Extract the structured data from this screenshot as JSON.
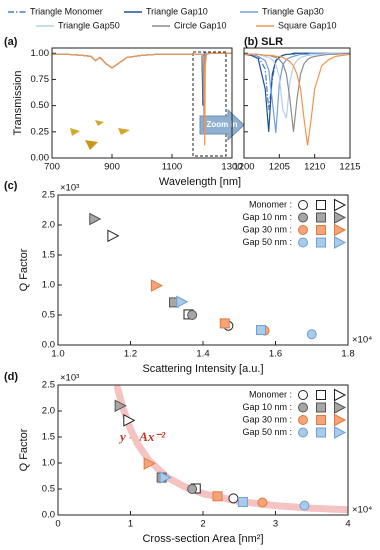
{
  "chart_data": [
    {
      "type": "line",
      "panel_label": "(a)",
      "zoom_label": "Zoom in",
      "xlabel": "Wavelength [nm]",
      "ylabel": "Transmission",
      "xlim": [
        700,
        1300
      ],
      "xticks": [
        700,
        900,
        1100,
        1300
      ],
      "ylim": [
        0,
        1.05
      ],
      "yticks": [
        {
          "value": 0,
          "label": "0.00"
        },
        {
          "value": 0.25,
          "label": "0.25"
        },
        {
          "value": 0.5,
          "label": "0.50"
        },
        {
          "value": 0.75,
          "label": "0.75"
        },
        {
          "value": 1,
          "label": "1.00"
        }
      ],
      "x": [
        700,
        750,
        800,
        830,
        845,
        860,
        880,
        900,
        920,
        950,
        1000,
        1050,
        1100,
        1150,
        1190,
        1200,
        1203,
        1205,
        1207,
        1209,
        1211,
        1215,
        1230,
        1260,
        1300
      ],
      "series": [
        {
          "name": "Triangle Monomer",
          "color": "#4a7fc1",
          "style": "dash-dot",
          "values": [
            0.99,
            0.99,
            0.98,
            0.97,
            0.93,
            0.96,
            0.9,
            0.86,
            0.9,
            0.96,
            0.98,
            0.99,
            0.99,
            0.99,
            0.99,
            0.99,
            0.6,
            0.95,
            0.99,
            1,
            1,
            1,
            1,
            1,
            1
          ]
        },
        {
          "name": "Triangle Gap10",
          "color": "#1f4e99",
          "style": "solid",
          "values": [
            0.99,
            0.99,
            0.98,
            0.97,
            0.93,
            0.96,
            0.9,
            0.86,
            0.9,
            0.96,
            0.98,
            0.99,
            0.99,
            0.99,
            0.99,
            0.99,
            0.5,
            0.96,
            0.99,
            1,
            1,
            1,
            1,
            1,
            1
          ]
        },
        {
          "name": "Triangle Gap30",
          "color": "#6f9fd8",
          "style": "solid",
          "values": [
            0.99,
            0.99,
            0.98,
            0.97,
            0.93,
            0.96,
            0.9,
            0.86,
            0.9,
            0.96,
            0.98,
            0.99,
            0.99,
            0.99,
            0.99,
            0.99,
            0.93,
            0.55,
            0.97,
            0.99,
            1,
            1,
            1,
            1,
            1
          ]
        },
        {
          "name": "Triangle Gap50",
          "color": "#b8cdea",
          "style": "solid",
          "values": [
            0.99,
            0.99,
            0.98,
            0.97,
            0.93,
            0.96,
            0.9,
            0.86,
            0.9,
            0.96,
            0.98,
            0.99,
            0.99,
            0.99,
            0.99,
            0.99,
            0.97,
            0.77,
            0.7,
            0.95,
            0.98,
            1,
            1,
            1,
            1
          ]
        },
        {
          "name": "Circle Gap10",
          "color": "#8c8c8c",
          "style": "solid",
          "values": [
            0.99,
            0.99,
            0.98,
            0.97,
            0.93,
            0.96,
            0.9,
            0.86,
            0.9,
            0.96,
            0.98,
            0.99,
            0.99,
            0.99,
            0.99,
            0.99,
            0.98,
            0.94,
            0.25,
            0.94,
            0.98,
            0.99,
            1,
            1,
            1
          ]
        },
        {
          "name": "Square Gap10",
          "color": "#f0954f",
          "style": "solid",
          "values": [
            0.99,
            0.99,
            0.98,
            0.97,
            0.93,
            0.96,
            0.9,
            0.86,
            0.9,
            0.96,
            0.98,
            0.99,
            0.99,
            0.99,
            0.99,
            0.99,
            0.98,
            0.97,
            0.88,
            0.12,
            0.88,
            0.99,
            1,
            1,
            1
          ]
        }
      ]
    },
    {
      "type": "line",
      "panel_label": "(b) SLR",
      "xlim": [
        1200,
        1215
      ],
      "xticks": [
        1200,
        1205,
        1210,
        1215
      ],
      "ylim": [
        0,
        1.05
      ],
      "yticks": [
        0,
        0.25,
        0.5,
        0.75,
        1
      ],
      "ytick_labels": false,
      "x": [
        1200,
        1201,
        1202,
        1203,
        1203.5,
        1204,
        1204.5,
        1205,
        1205.5,
        1206,
        1206.5,
        1207,
        1207.5,
        1208,
        1208.5,
        1209,
        1209.5,
        1210,
        1211,
        1212,
        1213,
        1215
      ],
      "series": [
        {
          "color": "#4a7fc1",
          "style": "dash-dot",
          "values": [
            0.99,
            0.99,
            0.97,
            0.85,
            0.46,
            0.75,
            0.92,
            0.97,
            0.98,
            0.99,
            0.99,
            0.99,
            1,
            1,
            1,
            1,
            1,
            1,
            1,
            1,
            1,
            1
          ]
        },
        {
          "color": "#1f4e99",
          "style": "solid",
          "values": [
            0.99,
            0.98,
            0.95,
            0.66,
            0.25,
            0.8,
            0.93,
            0.96,
            0.98,
            0.99,
            0.99,
            1,
            1,
            1,
            1,
            1,
            1,
            1,
            1,
            1,
            1,
            1
          ]
        },
        {
          "color": "#6f9fd8",
          "style": "solid",
          "values": [
            0.99,
            0.99,
            0.97,
            0.93,
            0.84,
            0.55,
            0.24,
            0.71,
            0.89,
            0.94,
            0.96,
            0.97,
            0.98,
            0.99,
            0.99,
            0.99,
            1,
            1,
            1,
            1,
            1,
            1
          ]
        },
        {
          "color": "#b8cdea",
          "style": "solid",
          "values": [
            0.99,
            0.99,
            0.99,
            0.97,
            0.96,
            0.94,
            0.89,
            0.77,
            0.46,
            0.38,
            0.73,
            0.88,
            0.93,
            0.96,
            0.97,
            0.98,
            0.98,
            0.99,
            0.99,
            1,
            1,
            1
          ]
        },
        {
          "color": "#8c8c8c",
          "style": "solid",
          "values": [
            0.99,
            0.99,
            0.99,
            0.98,
            0.98,
            0.97,
            0.96,
            0.94,
            0.9,
            0.8,
            0.56,
            0.25,
            0.56,
            0.8,
            0.9,
            0.94,
            0.96,
            0.97,
            0.98,
            0.99,
            0.99,
            1
          ]
        },
        {
          "color": "#f0954f",
          "style": "solid",
          "values": [
            0.99,
            0.99,
            0.99,
            0.98,
            0.98,
            0.98,
            0.97,
            0.97,
            0.96,
            0.94,
            0.92,
            0.88,
            0.8,
            0.66,
            0.37,
            0.12,
            0.37,
            0.66,
            0.88,
            0.94,
            0.97,
            0.99
          ]
        }
      ]
    },
    {
      "type": "scatter",
      "panel_label": "(c)",
      "xlabel": "Scattering Intensity [a.u.]",
      "ylabel": "Q Factor",
      "x_multiplier": "×10⁴",
      "y_multiplier": "×10³",
      "xlim": [
        1.0,
        1.8
      ],
      "xticks": [
        {
          "value": 1,
          "label": "1.0"
        },
        1.2,
        1.4,
        1.6,
        1.8
      ],
      "ylim": [
        0,
        2.5
      ],
      "yticks": [
        {
          "value": 0,
          "label": "0.0"
        },
        0.5,
        {
          "value": 1,
          "label": "1.0"
        },
        1.5,
        {
          "value": 2,
          "label": "2.0"
        },
        2.5
      ],
      "markers": [
        "circle",
        "square",
        "triangle"
      ],
      "series": [
        {
          "name": "Monomer :",
          "color": "#ffffff",
          "edge": "#222222",
          "x": [
            1.47,
            1.36,
            1.15
          ],
          "values": [
            0.32,
            0.51,
            1.82
          ]
        },
        {
          "name": "Gap 10 nm :",
          "color": "#a6a6a6",
          "edge": "#555555",
          "x": [
            1.37,
            1.32,
            1.1
          ],
          "values": [
            0.5,
            0.71,
            2.1
          ]
        },
        {
          "name": "Gap 30 nm :",
          "color": "#f4a47c",
          "edge": "#e07b39",
          "x": [
            1.57,
            1.46,
            1.27
          ],
          "values": [
            0.24,
            0.36,
            0.99
          ]
        },
        {
          "name": "Gap 50 nm :",
          "color": "#a8cbe8",
          "edge": "#6f9fd8",
          "x": [
            1.7,
            1.56,
            1.34
          ],
          "values": [
            0.18,
            0.25,
            0.72
          ]
        }
      ]
    },
    {
      "type": "scatter",
      "panel_label": "(d)",
      "xlabel": "Cross-section Area [nm²]",
      "ylabel": "Q Factor",
      "x_multiplier": "×10⁴",
      "y_multiplier": "×10³",
      "fit_label": "y = Ax⁻²",
      "xlim": [
        0,
        4
      ],
      "xticks": [
        0,
        1,
        2,
        3,
        4
      ],
      "ylim": [
        0,
        2.5
      ],
      "yticks": [
        {
          "value": 0,
          "label": "0.0"
        },
        0.5,
        {
          "value": 1,
          "label": "1.0"
        },
        1.5,
        {
          "value": 2,
          "label": "2.0"
        },
        2.5
      ],
      "markers": [
        "circle",
        "square",
        "triangle"
      ],
      "fit": {
        "color": "#f6c3c3",
        "x": [
          0.82,
          0.9,
          1,
          1.1,
          1.25,
          1.5,
          1.75,
          2,
          2.5,
          3,
          3.5,
          4
        ],
        "values": [
          2.45,
          2.04,
          1.65,
          1.36,
          1.06,
          0.73,
          0.54,
          0.41,
          0.26,
          0.18,
          0.13,
          0.1
        ]
      },
      "series": [
        {
          "name": "Monomer :",
          "color": "#ffffff",
          "edge": "#222222",
          "x": [
            2.42,
            1.9,
            0.97
          ],
          "values": [
            0.32,
            0.51,
            1.82
          ]
        },
        {
          "name": "Gap 10 nm :",
          "color": "#a6a6a6",
          "edge": "#555555",
          "x": [
            1.85,
            1.43,
            0.85
          ],
          "values": [
            0.5,
            0.72,
            2.1
          ]
        },
        {
          "name": "Gap 30 nm :",
          "color": "#f4a47c",
          "edge": "#e07b39",
          "x": [
            2.82,
            2.2,
            1.25
          ],
          "values": [
            0.24,
            0.36,
            0.99
          ]
        },
        {
          "name": "Gap 50 nm :",
          "color": "#a8cbe8",
          "edge": "#6f9fd8",
          "x": [
            3.4,
            2.55,
            1.47
          ],
          "values": [
            0.18,
            0.25,
            0.72
          ]
        }
      ]
    }
  ]
}
